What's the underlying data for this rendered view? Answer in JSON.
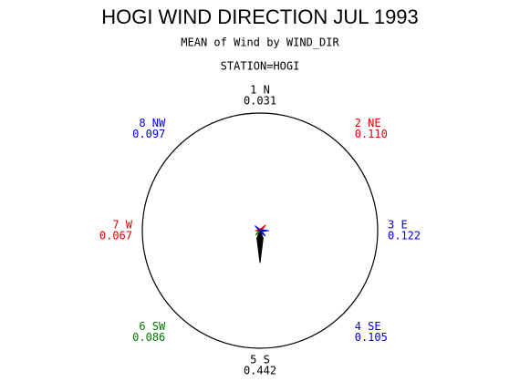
{
  "chart_data": {
    "type": "star",
    "title": "HOGI WIND DIRECTION JUL 1993",
    "subtitle": "MEAN of Wind by WIND_DIR",
    "group_label": "STATION=HOGI",
    "categories": [
      "1 N",
      "2 NE",
      "3 E",
      "4 SE",
      "5 S",
      "6 SW",
      "7 W",
      "8 NW"
    ],
    "values": [
      0.031,
      0.11,
      0.122,
      0.105,
      0.442,
      0.086,
      0.067,
      0.097
    ],
    "value_labels": [
      "0.031",
      "0.110",
      "0.122",
      "0.105",
      "0.442",
      "0.086",
      "0.067",
      "0.097"
    ],
    "colors": [
      "#000000",
      "#e00000",
      "#0000e0",
      "#0000e0",
      "#000000",
      "#007a00",
      "#e00000",
      "#0000e0"
    ]
  }
}
